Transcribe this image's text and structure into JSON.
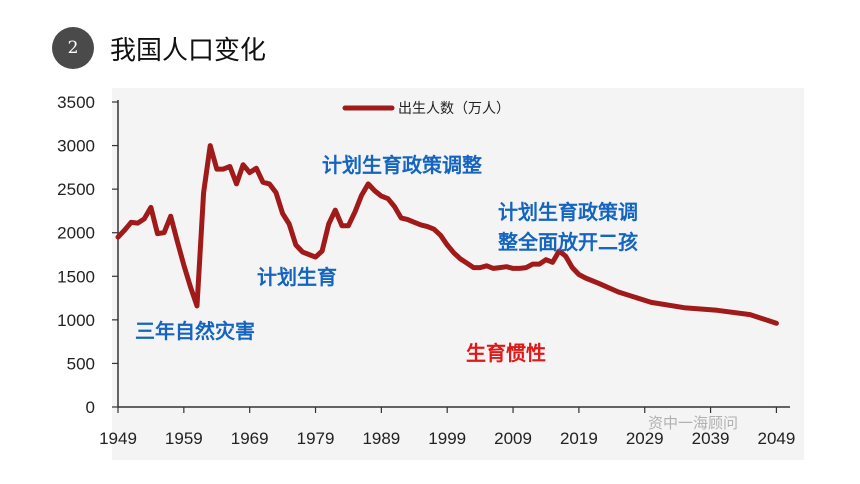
{
  "header": {
    "number": "2",
    "title": "我国人口变化"
  },
  "colors": {
    "line": "#a11a1a",
    "policy_blue": "#1565c0",
    "inertia_red": "#e01818"
  },
  "chart_data": {
    "type": "line",
    "title": "",
    "xlabel": "",
    "ylabel": "",
    "xlim": [
      1949,
      2050
    ],
    "ylim": [
      0,
      3500
    ],
    "y_ticks": [
      0,
      500,
      1000,
      1500,
      2000,
      2500,
      3000,
      3500
    ],
    "x_ticks": [
      1949,
      1959,
      1969,
      1979,
      1989,
      1999,
      2009,
      2019,
      2029,
      2039,
      2049
    ],
    "legend": {
      "label": "出生人数（万人）",
      "position": "top"
    },
    "series": [
      {
        "name": "出生人数（万人）",
        "x": [
          1949,
          1950,
          1951,
          1952,
          1953,
          1954,
          1955,
          1956,
          1957,
          1958,
          1959,
          1960,
          1961,
          1962,
          1963,
          1964,
          1965,
          1966,
          1967,
          1968,
          1969,
          1970,
          1971,
          1972,
          1973,
          1974,
          1975,
          1976,
          1977,
          1978,
          1979,
          1980,
          1981,
          1982,
          1983,
          1984,
          1985,
          1986,
          1987,
          1988,
          1989,
          1990,
          1991,
          1992,
          1993,
          1994,
          1995,
          1996,
          1997,
          1998,
          1999,
          2000,
          2001,
          2002,
          2003,
          2004,
          2005,
          2006,
          2007,
          2008,
          2009,
          2010,
          2011,
          2012,
          2013,
          2014,
          2015,
          2016,
          2017,
          2018,
          2019,
          2020,
          2022,
          2025,
          2030,
          2035,
          2040,
          2045,
          2049
        ],
        "y": [
          1950,
          2030,
          2120,
          2110,
          2160,
          2290,
          1990,
          2000,
          2190,
          1900,
          1630,
          1380,
          1160,
          2460,
          3000,
          2730,
          2730,
          2760,
          2560,
          2780,
          2690,
          2740,
          2580,
          2560,
          2460,
          2220,
          2100,
          1860,
          1780,
          1750,
          1720,
          1790,
          2100,
          2260,
          2080,
          2080,
          2240,
          2430,
          2560,
          2480,
          2420,
          2390,
          2300,
          2170,
          2150,
          2120,
          2090,
          2070,
          2040,
          1970,
          1860,
          1770,
          1700,
          1650,
          1600,
          1600,
          1620,
          1590,
          1600,
          1610,
          1590,
          1590,
          1600,
          1640,
          1640,
          1690,
          1660,
          1790,
          1730,
          1600,
          1520,
          1480,
          1420,
          1320,
          1200,
          1140,
          1110,
          1060,
          960
        ]
      }
    ],
    "annotations": [
      {
        "text": "三年自然灾害",
        "color": "blue"
      },
      {
        "text": "计划生育",
        "color": "blue"
      },
      {
        "text": "计划生育政策调整",
        "color": "blue"
      },
      {
        "text": "计划生育政策调",
        "color": "blue"
      },
      {
        "text": "整全面放开二孩",
        "color": "blue"
      },
      {
        "text": "生育惯性",
        "color": "red"
      }
    ]
  },
  "watermark": "资中一海顾问"
}
